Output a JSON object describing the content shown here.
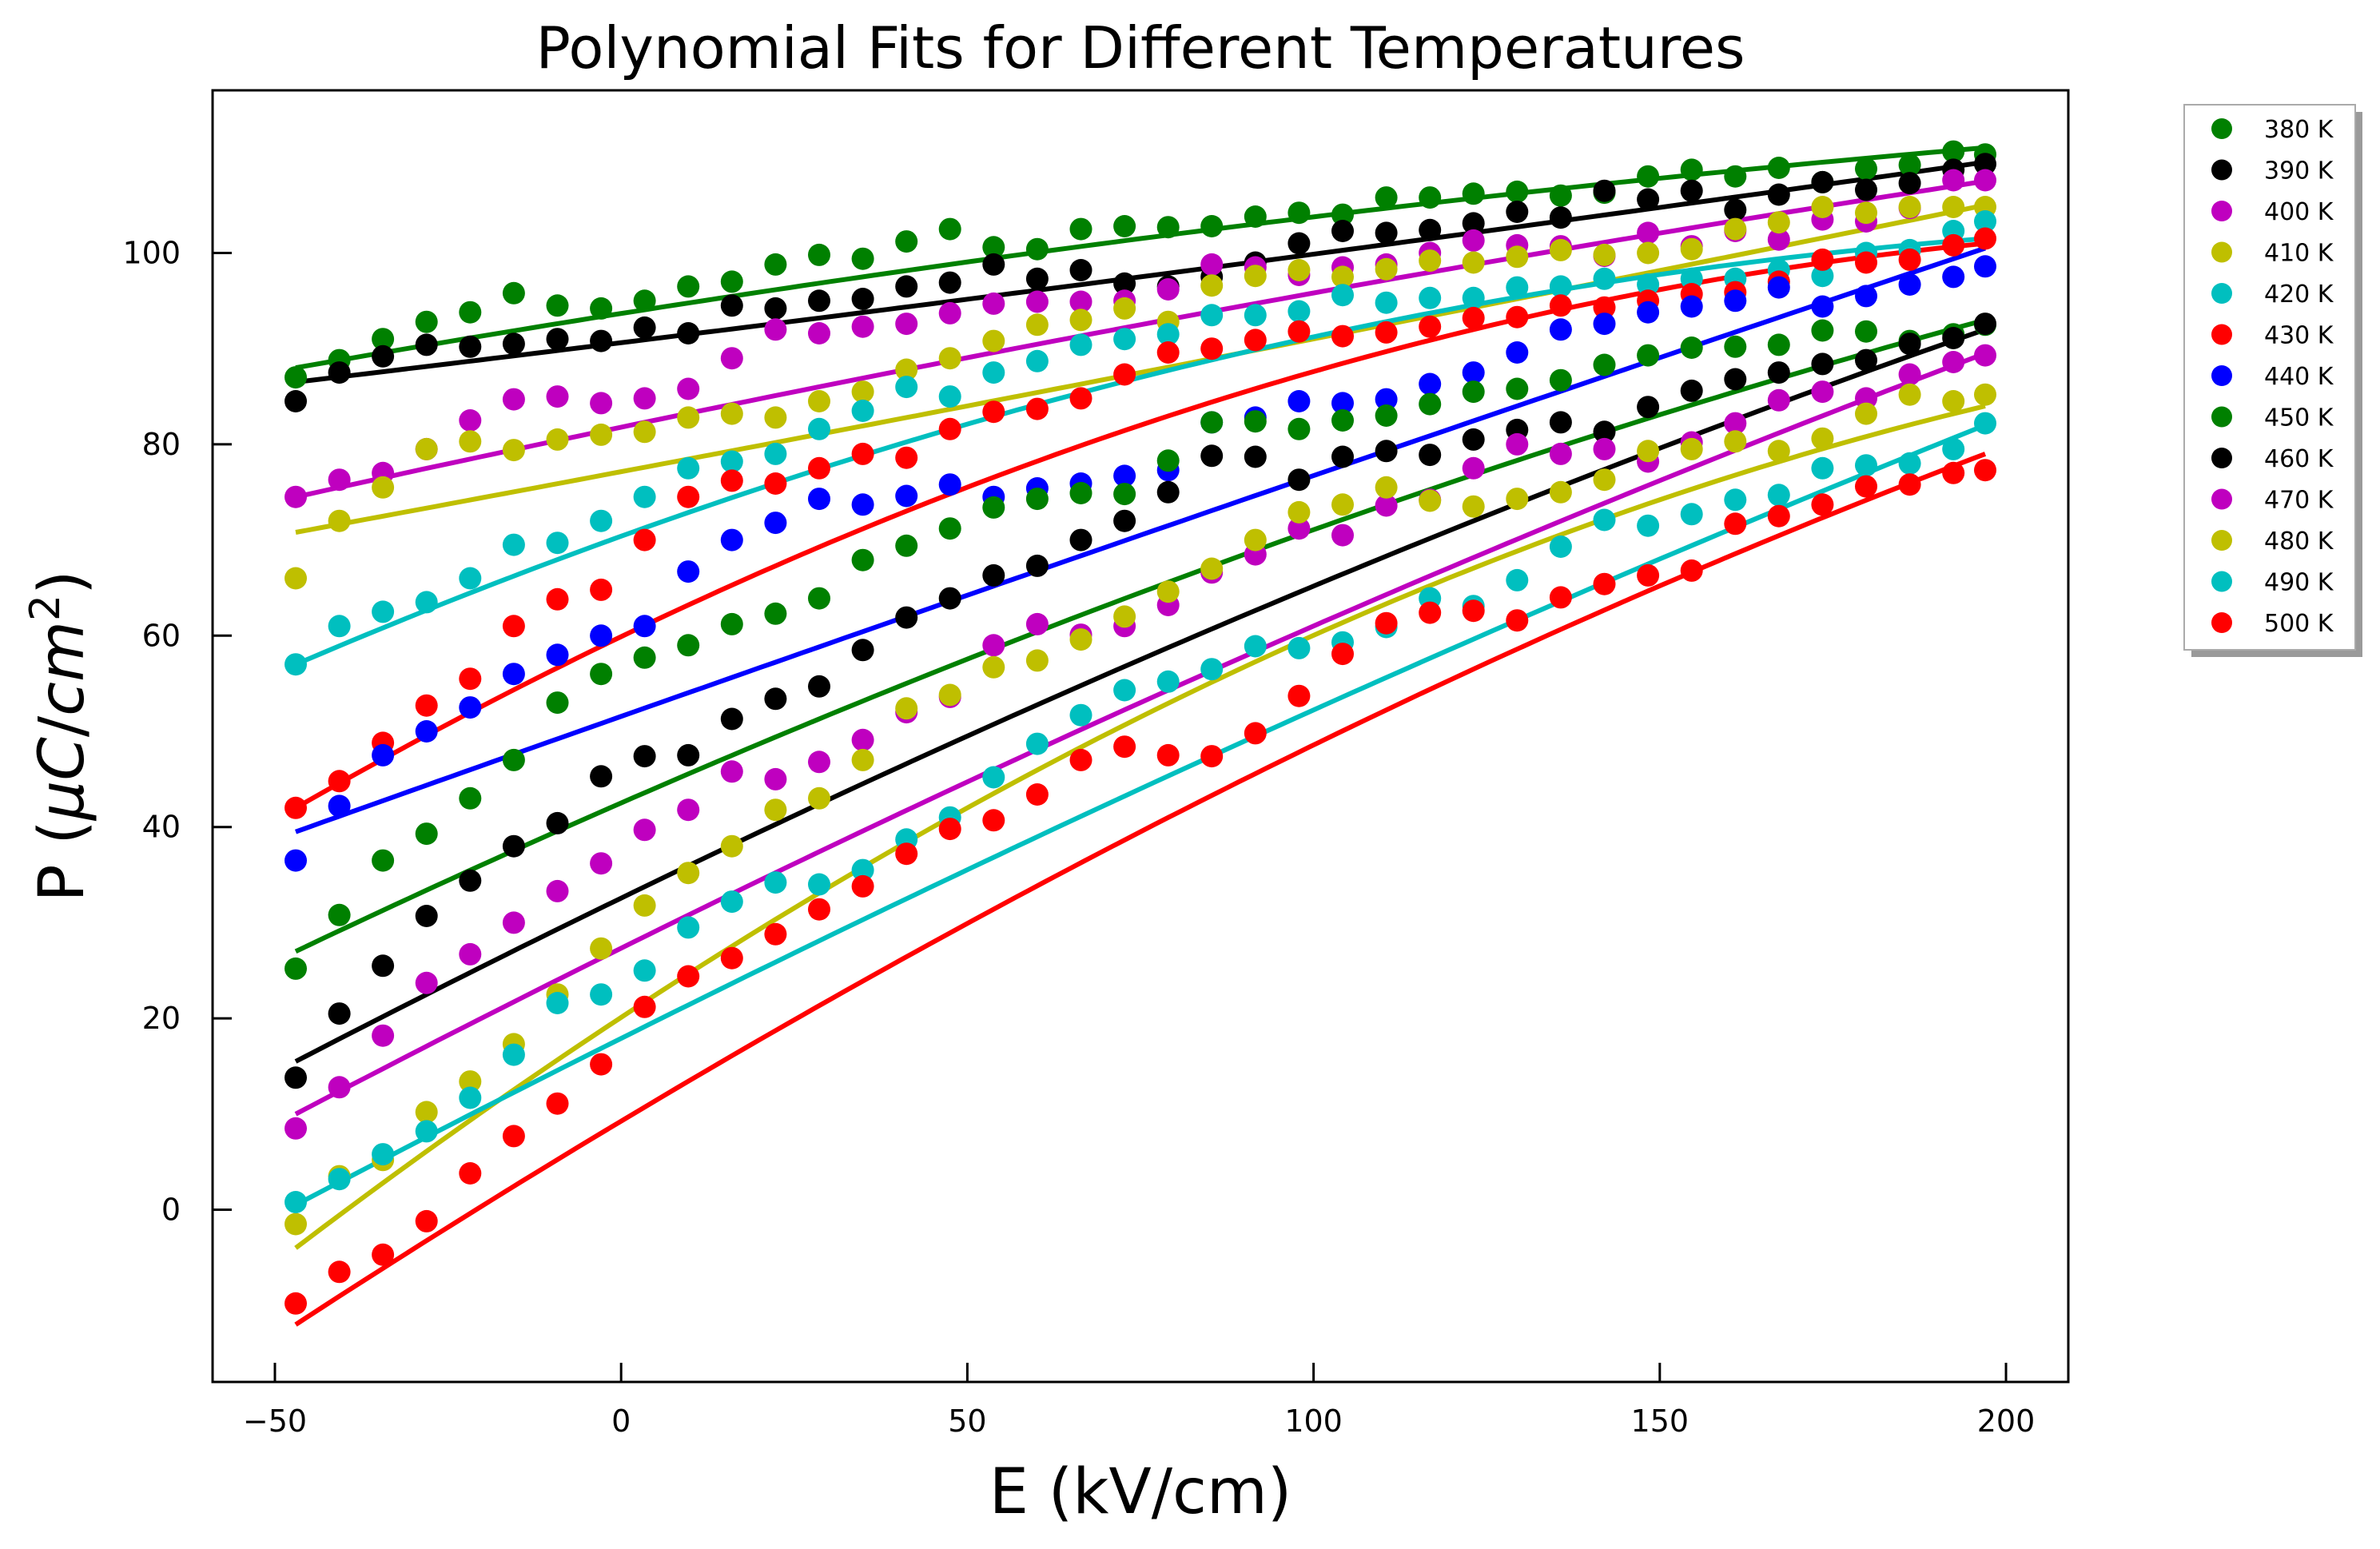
{
  "chart_data": {
    "type": "scatter",
    "title": "Polynomial Fits for Different Temperatures",
    "xlabel": "E (kV/cm)",
    "ylabel_prefix": "P (",
    "ylabel_mu": "μ",
    "ylabel_C": "C",
    "ylabel_slash": "/",
    "ylabel_cm": "cm",
    "ylabel_exp": "2",
    "ylabel_suffix": ")",
    "xlim": [
      -59,
      209
    ],
    "ylim": [
      -18,
      117
    ],
    "xticks": [
      -50,
      0,
      50,
      100,
      150,
      200
    ],
    "yticks": [
      0,
      20,
      40,
      60,
      80,
      100
    ],
    "xtick_labels": [
      "−50",
      "0",
      "50",
      "100",
      "150",
      "200"
    ],
    "ytick_labels": [
      "0",
      "20",
      "40",
      "60",
      "80",
      "100"
    ],
    "legend_position": "outside upper right",
    "grid": false,
    "x": [
      -47,
      -40.7,
      -34.4,
      -28.1,
      -21.8,
      -15.5,
      -9.2,
      -2.9,
      3.4,
      9.7,
      16,
      22.3,
      28.6,
      34.9,
      41.2,
      47.5,
      53.8,
      60.1,
      66.4,
      72.7,
      79,
      85.3,
      91.6,
      97.9,
      104.2,
      110.5,
      116.8,
      123.1,
      129.4,
      135.7,
      142,
      148.3,
      154.6,
      160.9,
      167.2,
      173.5,
      179.8,
      186.1,
      192.4,
      197
    ],
    "series": [
      {
        "name": "380 K",
        "color": "#008000",
        "fit": [
          88,
          101.5,
          111
        ],
        "values": [
          87,
          88.8,
          91,
          92.8,
          93.8,
          95.8,
          94.5,
          94.2,
          95,
          96.5,
          97,
          98.8,
          99.8,
          99.4,
          101.2,
          102.5,
          100.6,
          100.4,
          102.5,
          102.8,
          102.7,
          102.8,
          103.8,
          104.2,
          104,
          105.8,
          105.8,
          106.2,
          106.4,
          106,
          106.3,
          108,
          108.7,
          108,
          108.9,
          107.4,
          108.8,
          109.2,
          110.6,
          110.3
        ]
      },
      {
        "name": "390 K",
        "color": "#000000",
        "fit": [
          86.5,
          97.5,
          109.5
        ],
        "values": [
          84.5,
          87.5,
          89.2,
          90.4,
          90.2,
          90.5,
          91,
          90.8,
          92.2,
          91.6,
          94.5,
          94.2,
          95,
          95.2,
          96.5,
          96.9,
          98.8,
          97.3,
          98.2,
          96.8,
          96.5,
          97.5,
          99,
          101,
          102.3,
          102.1,
          102.4,
          103.1,
          104.3,
          103.7,
          106.5,
          105.6,
          106.5,
          104.5,
          106.1,
          107.4,
          106.6,
          107.3,
          108.7,
          109.3
        ]
      },
      {
        "name": "400 K",
        "color": "#bf00bf",
        "fit": [
          74.5,
          92.5,
          107.5
        ],
        "values": [
          74.5,
          76.3,
          77,
          79.5,
          82.5,
          84.7,
          85,
          84.3,
          84.8,
          85.8,
          89,
          92,
          91.6,
          92.3,
          92.6,
          93.7,
          94.7,
          94.9,
          94.9,
          95,
          96.2,
          98.8,
          98.5,
          97.7,
          98.5,
          98.8,
          100,
          101.3,
          100.8,
          100.7,
          99.7,
          102.1,
          100.7,
          102.3,
          101.4,
          103.5,
          103.3,
          104.7,
          107.6,
          107.6
        ]
      },
      {
        "name": "410 K",
        "color": "#bfbf00",
        "fit": [
          70.8,
          87.5,
          105
        ],
        "values": [
          66,
          72,
          75.5,
          79.5,
          80.3,
          79.4,
          80.5,
          81,
          81.3,
          82.8,
          83.2,
          82.8,
          84.5,
          85.5,
          87.8,
          89,
          90.8,
          92.5,
          93,
          94.2,
          92.8,
          96.6,
          97.6,
          98.2,
          97.5,
          98.3,
          99.2,
          99,
          99.6,
          100.3,
          99.8,
          100,
          100.4,
          102.5,
          103.2,
          104.8,
          104.2,
          104.8,
          104.8,
          104.8
        ]
      },
      {
        "name": "420 K",
        "color": "#00bfbf",
        "fit": [
          57,
          87,
          101.5
        ],
        "values": [
          57,
          61,
          62.5,
          63.5,
          66,
          69.5,
          69.7,
          72,
          74.5,
          77.5,
          78.2,
          79,
          81.6,
          83.5,
          86,
          85,
          87.5,
          88.7,
          90.4,
          91,
          91.5,
          93.5,
          93.5,
          93.9,
          95.6,
          94.8,
          95.3,
          95.3,
          96.4,
          96.5,
          97.3,
          96.7,
          97.3,
          97.3,
          98.2,
          97.6,
          100,
          100.3,
          102.3,
          103.3
        ]
      },
      {
        "name": "430 K",
        "color": "#ff0000",
        "fit": [
          42,
          82,
          101
        ],
        "values": [
          42,
          44.8,
          48.8,
          52.7,
          55.5,
          61,
          63.8,
          64.8,
          70,
          74.5,
          76.2,
          75.9,
          77.5,
          79,
          78.6,
          81.6,
          83.4,
          83.7,
          84.8,
          87.3,
          89.6,
          90,
          90.9,
          91.8,
          91.3,
          91.7,
          92.3,
          93.2,
          93.3,
          94.5,
          94.3,
          95,
          95.7,
          95.9,
          97,
          99.3,
          99,
          99.3,
          100.8,
          101.5
        ]
      },
      {
        "name": "440 K",
        "color": "#0000ff",
        "fit": [
          39.5,
          70.5,
          100.5
        ],
        "values": [
          36.5,
          42.2,
          47.5,
          50,
          52.5,
          56,
          58,
          60,
          61,
          66.7,
          70,
          71.8,
          74.3,
          73.7,
          74.6,
          75.8,
          74.5,
          75.4,
          75.9,
          76.7,
          77.3,
          82.3,
          82.8,
          84.5,
          84.3,
          84.7,
          86.3,
          87.5,
          89.6,
          92,
          92.6,
          93.8,
          94.4,
          95,
          96.4,
          94.4,
          95.5,
          96.7,
          97.5,
          98.6
        ]
      },
      {
        "name": "450 K",
        "color": "#008000",
        "fit": [
          27,
          64.5,
          93
        ],
        "values": [
          25.2,
          30.8,
          36.5,
          39.3,
          43,
          47,
          53,
          56,
          57.7,
          59,
          61.2,
          62.3,
          63.9,
          67.9,
          69.4,
          71.2,
          73.4,
          74.3,
          74.9,
          74.8,
          78.3,
          82.3,
          82.4,
          81.6,
          82.5,
          83,
          84.2,
          85.5,
          85.8,
          86.7,
          88.3,
          89.3,
          90.1,
          90.2,
          90.4,
          91.9,
          91.8,
          90.8,
          91.5,
          92.5
        ]
      },
      {
        "name": "460 K",
        "color": "#000000",
        "fit": [
          15.5,
          57.5,
          92
        ],
        "values": [
          13.8,
          20.5,
          25.5,
          30.7,
          34.4,
          38,
          40.4,
          45.3,
          47.4,
          47.5,
          51.3,
          53.4,
          54.7,
          58.5,
          61.9,
          63.9,
          66.3,
          67.3,
          70,
          72,
          75,
          78.8,
          78.7,
          76.3,
          78.7,
          79.3,
          78.9,
          80.5,
          81.5,
          82.3,
          81.3,
          83.9,
          85.6,
          86.8,
          87.5,
          88.4,
          88.8,
          90.5,
          91.1,
          92.6
        ]
      },
      {
        "name": "470 K",
        "color": "#bf00bf",
        "fit": [
          10,
          53,
          89.5
        ],
        "values": [
          8.5,
          12.8,
          18.2,
          23.7,
          26.7,
          30,
          33.3,
          36.2,
          39.7,
          41.8,
          45.8,
          45,
          46.8,
          49.1,
          52,
          53.6,
          59,
          61.2,
          60.1,
          61,
          63.2,
          66.6,
          68.5,
          71.2,
          70.5,
          73.6,
          74.2,
          77.5,
          80,
          79,
          79.5,
          78.2,
          80.2,
          82.2,
          84.6,
          85.5,
          84.8,
          87.3,
          88.6,
          89.3
        ]
      },
      {
        "name": "480 K",
        "color": "#bfbf00",
        "fit": [
          -4,
          51.5,
          84
        ],
        "values": [
          -1.5,
          3.5,
          5.2,
          10.2,
          13.4,
          17.3,
          22.5,
          27.3,
          31.8,
          35.2,
          38,
          41.8,
          43,
          47,
          52.4,
          53.8,
          56.7,
          57.4,
          59.6,
          62,
          64.6,
          67,
          70,
          72.9,
          73.7,
          75.5,
          74.1,
          73.5,
          74.3,
          75,
          76.3,
          79.3,
          79.5,
          80.3,
          79.3,
          80.6,
          83.2,
          85.2,
          84.5,
          85.2
        ]
      },
      {
        "name": "490 K",
        "color": "#00bfbf",
        "fit": [
          0.5,
          44,
          82
        ],
        "values": [
          0.8,
          3.2,
          5.8,
          8.2,
          11.7,
          16.2,
          21.6,
          22.5,
          25,
          29.5,
          32.2,
          34.2,
          34,
          35.5,
          38.7,
          41,
          45.2,
          48.7,
          51.7,
          54.3,
          55.2,
          56.5,
          58.9,
          58.7,
          59.3,
          60.9,
          63.9,
          63.1,
          65.8,
          69.3,
          72.1,
          71.5,
          72.7,
          74.2,
          74.7,
          77.5,
          77.8,
          78,
          79.5,
          82.2
        ]
      },
      {
        "name": "500 K",
        "color": "#ff0000",
        "fit": [
          -12,
          39.5,
          79
        ],
        "values": [
          -9.8,
          -6.5,
          -4.7,
          -1.2,
          3.8,
          7.7,
          11.1,
          15.2,
          21.2,
          24.4,
          26.3,
          28.8,
          31.4,
          33.8,
          37.2,
          39.8,
          40.7,
          43.4,
          47,
          48.4,
          47.5,
          47.4,
          49.8,
          53.7,
          58.1,
          61.3,
          62.4,
          62.6,
          61.6,
          64,
          65.4,
          66.3,
          66.8,
          71.7,
          72.5,
          73.7,
          75.6,
          75.8,
          77,
          77.3
        ]
      }
    ]
  }
}
